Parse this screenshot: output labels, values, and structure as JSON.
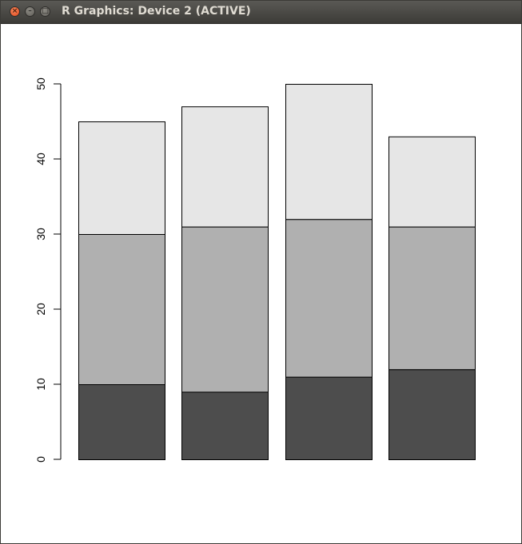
{
  "window": {
    "title": "R Graphics: Device 2 (ACTIVE)",
    "buttons": {
      "close_icon": "close-icon",
      "minimize_icon": "minimize-icon",
      "maximize_icon": "maximize-icon"
    }
  },
  "chart_data": {
    "type": "bar",
    "stacked": true,
    "categories": [
      "",
      "",
      "",
      ""
    ],
    "series": [
      {
        "values": [
          10,
          9,
          11,
          12
        ],
        "color": "#4d4d4d"
      },
      {
        "values": [
          20,
          22,
          21,
          19
        ],
        "color": "#b0b0b0"
      },
      {
        "values": [
          15,
          16,
          18,
          12
        ],
        "color": "#e6e6e6"
      }
    ],
    "title": "",
    "xlabel": "",
    "ylabel": "",
    "ylim": [
      0,
      50
    ],
    "yticks": [
      "0",
      "10",
      "20",
      "30",
      "40",
      "50"
    ],
    "grid": false,
    "legend": "none"
  }
}
